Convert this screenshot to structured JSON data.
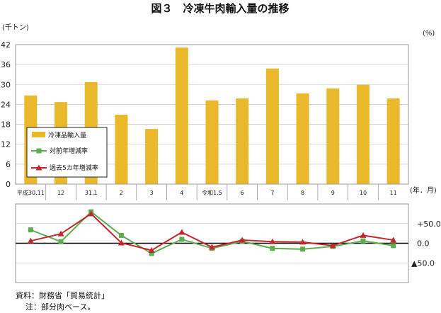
{
  "figure": {
    "title": "図３　冷凍牛肉輸入量の推移",
    "source": "資料：財務省「貿易統計」",
    "note": "注：部分肉ベース。"
  },
  "chart_data": [
    {
      "type": "bar",
      "categories": [
        "平成30.11",
        "12",
        "31.1",
        "2",
        "3",
        "4",
        "令和1.5",
        "6",
        "7",
        "8",
        "9",
        "10",
        "11"
      ],
      "xlabel": "(年．月)",
      "ylabel": "(千トン)",
      "ylim": [
        0,
        42
      ],
      "yticks": [
        0,
        6,
        12,
        18,
        24,
        30,
        36,
        42
      ],
      "grid": true,
      "legend": "lower-left",
      "series": [
        {
          "name": "冷凍品輸入量",
          "color": "#E9B92B",
          "values": [
            26.7,
            24.7,
            30.7,
            20.9,
            16.6,
            41.1,
            25.2,
            25.8,
            34.8,
            27.3,
            28.8,
            29.9,
            25.8
          ]
        }
      ]
    },
    {
      "type": "line",
      "categories": [
        "平成30.11",
        "12",
        "31.1",
        "2",
        "3",
        "4",
        "令和1.5",
        "6",
        "7",
        "8",
        "9",
        "10",
        "11"
      ],
      "ylabel": "(%)",
      "ylim": [
        -100,
        100
      ],
      "yticks": [
        50,
        0,
        -50
      ],
      "ytick_labels": [
        "+50.0",
        "0.0",
        "▲50.0"
      ],
      "grid": true,
      "series": [
        {
          "name": "対前年増減率",
          "color": "#5CAD4F",
          "marker": "square",
          "values": [
            34,
            4,
            80,
            20,
            -26,
            10,
            -13,
            5,
            -13,
            -15,
            -8,
            6,
            -6
          ]
        },
        {
          "name": "過去5カ年増減率",
          "color": "#C1272D",
          "marker": "triangle",
          "values": [
            6,
            24,
            75,
            1,
            -18,
            28,
            -10,
            8,
            4,
            3,
            -6,
            20,
            8
          ]
        }
      ]
    }
  ]
}
